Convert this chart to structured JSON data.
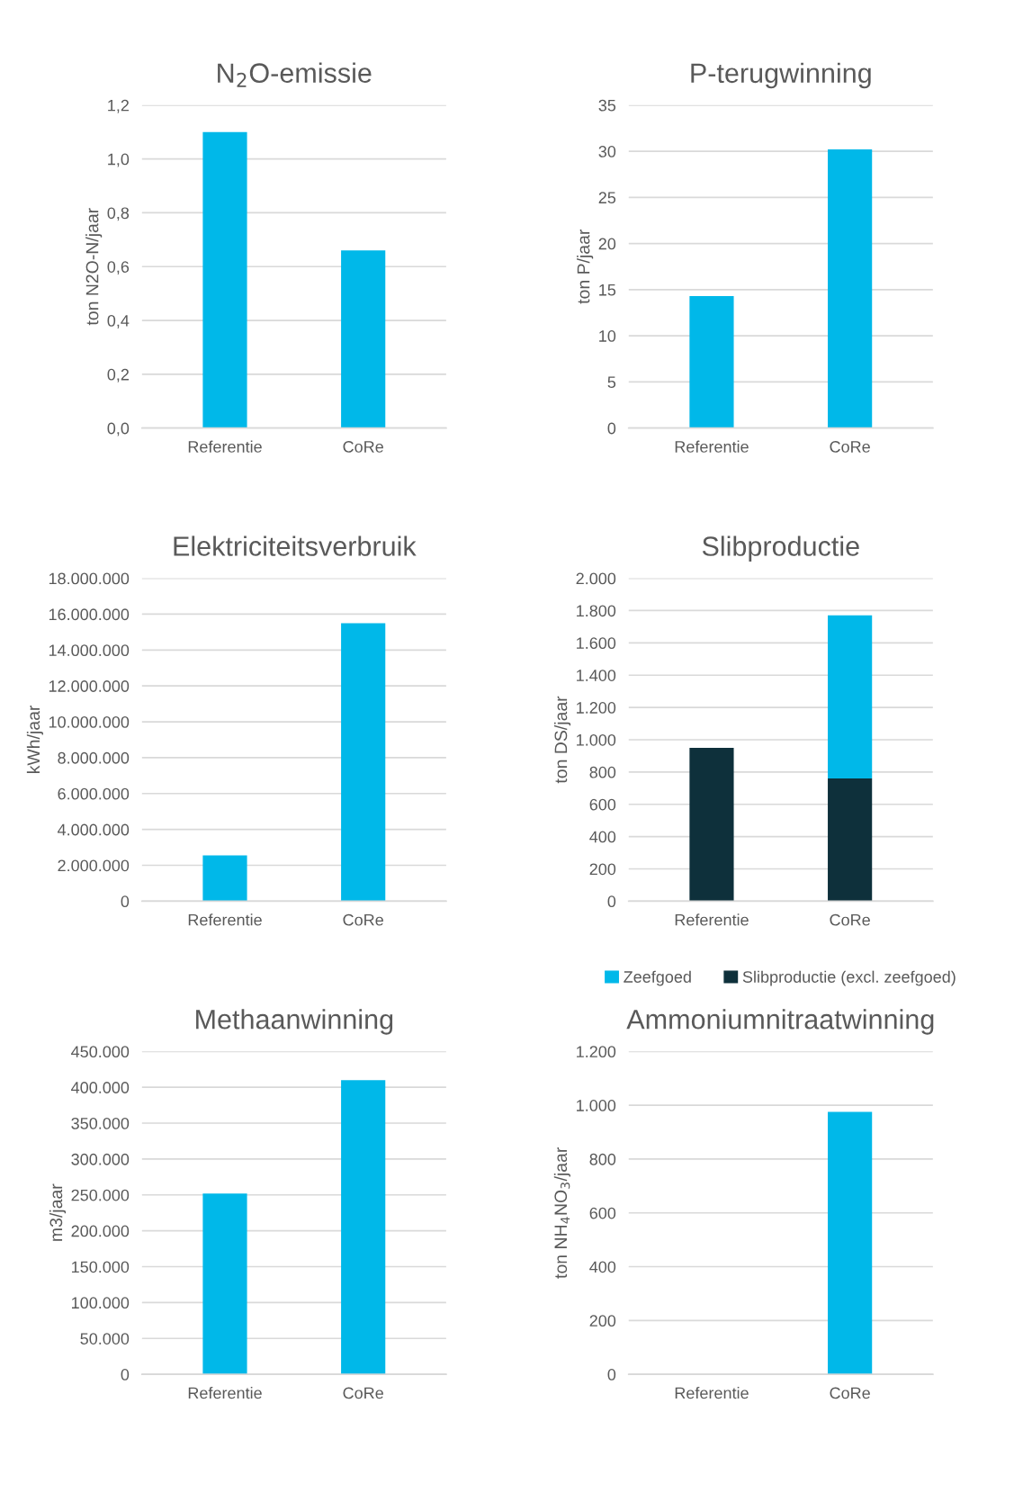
{
  "chart_data": [
    {
      "type": "bar",
      "title": "N$_{2}$O-emissie",
      "ylabel": "ton N2O-N/jaar",
      "categories": [
        "Referentie",
        "CoRe"
      ],
      "values": [
        1.1,
        0.66
      ],
      "color": "#00b8e9",
      "ylim": [
        0,
        1.2
      ],
      "yticks": [
        {
          "value": 0,
          "label": "0,0"
        },
        {
          "value": 0.2,
          "label": "0,2"
        },
        {
          "value": 0.4,
          "label": "0,4"
        },
        {
          "value": 0.6,
          "label": "0,6"
        },
        {
          "value": 0.8,
          "label": "0,8"
        },
        {
          "value": 1.0,
          "label": "1,0"
        },
        {
          "value": 1.2,
          "label": "1,2"
        }
      ],
      "grid": "y"
    },
    {
      "type": "bar",
      "title": "P-terugwinning",
      "ylabel": "ton P/jaar",
      "categories": [
        "Referentie",
        "CoRe"
      ],
      "values": [
        14.3,
        30.2
      ],
      "color": "#00b8e9",
      "ylim": [
        0,
        35
      ],
      "yticks": [
        0,
        5,
        10,
        15,
        20,
        25,
        30,
        35
      ],
      "grid": "y"
    },
    {
      "type": "bar",
      "title": "Elektriciteitsverbruik",
      "ylabel": "kWh/jaar",
      "categories": [
        "Referentie",
        "CoRe"
      ],
      "values": [
        2550000,
        15500000
      ],
      "color": "#00b8e9",
      "ylim": [
        0,
        18000000
      ],
      "yticks": [
        {
          "value": 0,
          "label": "0"
        },
        {
          "value": 2000000,
          "label": "2.000.000"
        },
        {
          "value": 4000000,
          "label": "4.000.000"
        },
        {
          "value": 6000000,
          "label": "6.000.000"
        },
        {
          "value": 8000000,
          "label": "8.000.000"
        },
        {
          "value": 10000000,
          "label": "10.000.000"
        },
        {
          "value": 12000000,
          "label": "12.000.000"
        },
        {
          "value": 14000000,
          "label": "14.000.000"
        },
        {
          "value": 16000000,
          "label": "16.000.000"
        },
        {
          "value": 18000000,
          "label": "18.000.000"
        }
      ],
      "grid": "y"
    },
    {
      "type": "bar",
      "title": "Slibproductie",
      "ylabel": "ton DS/jaar",
      "categories": [
        "Referentie",
        "CoRe"
      ],
      "stacked": true,
      "legend": "bottom",
      "series": [
        {
          "name": "Slibproductie (excl. zeefgoed)",
          "color": "#0e303b",
          "values": [
            950,
            760
          ]
        },
        {
          "name": "Zeefgoed",
          "color": "#00b8e9",
          "values": [
            null,
            1010
          ]
        }
      ],
      "ylim": [
        0,
        2000
      ],
      "yticks": [
        {
          "value": 0,
          "label": "0"
        },
        {
          "value": 200,
          "label": "200"
        },
        {
          "value": 400,
          "label": "400"
        },
        {
          "value": 600,
          "label": "600"
        },
        {
          "value": 800,
          "label": "800"
        },
        {
          "value": 1000,
          "label": "1.000"
        },
        {
          "value": 1200,
          "label": "1.200"
        },
        {
          "value": 1400,
          "label": "1.400"
        },
        {
          "value": 1600,
          "label": "1.600"
        },
        {
          "value": 1800,
          "label": "1.800"
        },
        {
          "value": 2000,
          "label": "2.000"
        }
      ],
      "grid": "y"
    },
    {
      "type": "bar",
      "title": "Methaanwinning",
      "ylabel": "m3/jaar",
      "categories": [
        "Referentie",
        "CoRe"
      ],
      "values": [
        252000,
        410000
      ],
      "color": "#00b8e9",
      "ylim": [
        0,
        450000
      ],
      "yticks": [
        {
          "value": 0,
          "label": "0"
        },
        {
          "value": 50000,
          "label": "50.000"
        },
        {
          "value": 100000,
          "label": "100.000"
        },
        {
          "value": 150000,
          "label": "150.000"
        },
        {
          "value": 200000,
          "label": "200.000"
        },
        {
          "value": 250000,
          "label": "250.000"
        },
        {
          "value": 300000,
          "label": "300.000"
        },
        {
          "value": 350000,
          "label": "350.000"
        },
        {
          "value": 400000,
          "label": "400.000"
        },
        {
          "value": 450000,
          "label": "450.000"
        }
      ],
      "grid": "y"
    },
    {
      "type": "bar",
      "title": "Ammoniumnitraatwinning",
      "ylabel": "ton NH$_{4}$NO$_{3}$/jaar",
      "categories": [
        "Referentie",
        "CoRe"
      ],
      "values": [
        null,
        975
      ],
      "color": "#00b8e9",
      "ylim": [
        0,
        1200
      ],
      "yticks": [
        {
          "value": 0,
          "label": "0"
        },
        {
          "value": 200,
          "label": "200"
        },
        {
          "value": 400,
          "label": "400"
        },
        {
          "value": 600,
          "label": "600"
        },
        {
          "value": 800,
          "label": "800"
        },
        {
          "value": 1000,
          "label": "1.000"
        },
        {
          "value": 1200,
          "label": "1.200"
        }
      ],
      "grid": "y"
    }
  ]
}
